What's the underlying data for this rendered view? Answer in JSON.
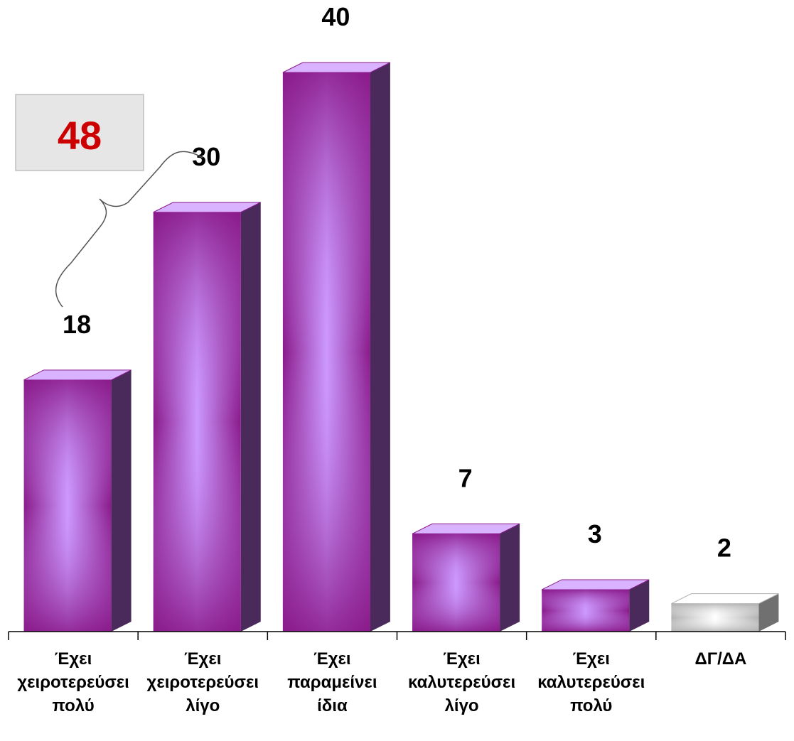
{
  "chart_data": {
    "type": "bar",
    "categories": [
      [
        "Έχει",
        "χειροτερεύσει",
        "πολύ"
      ],
      [
        "Έχει",
        "χειροτερεύσει",
        "λίγο"
      ],
      [
        "Έχει",
        "παραμείνει",
        "ίδια"
      ],
      [
        "Έχει",
        "καλυτερεύσει",
        "λίγο"
      ],
      [
        "Έχει",
        "καλυτερεύσει",
        "πολύ"
      ],
      [
        "ΔΓ/ΔΑ"
      ]
    ],
    "values": [
      18,
      30,
      40,
      7,
      3,
      2
    ],
    "ylim": [
      0,
      40
    ],
    "bar_colors": [
      "#8a1a8a",
      "#8a1a8a",
      "#8a1a8a",
      "#8a1a8a",
      "#8a1a8a",
      "#b0b0b0"
    ],
    "bar_highlight_colors": [
      "#cc99ff",
      "#cc99ff",
      "#cc99ff",
      "#cc99ff",
      "#cc99ff",
      "#ffffff"
    ],
    "bar_side_colors": [
      "#4a2a5a",
      "#4a2a5a",
      "#4a2a5a",
      "#4a2a5a",
      "#4a2a5a",
      "#707070"
    ],
    "grid": false,
    "legend": "none",
    "annotation": {
      "value": "48",
      "color": "#cc0000",
      "box_color": "#e6e6e6",
      "spans_categories": [
        0,
        1
      ]
    }
  }
}
